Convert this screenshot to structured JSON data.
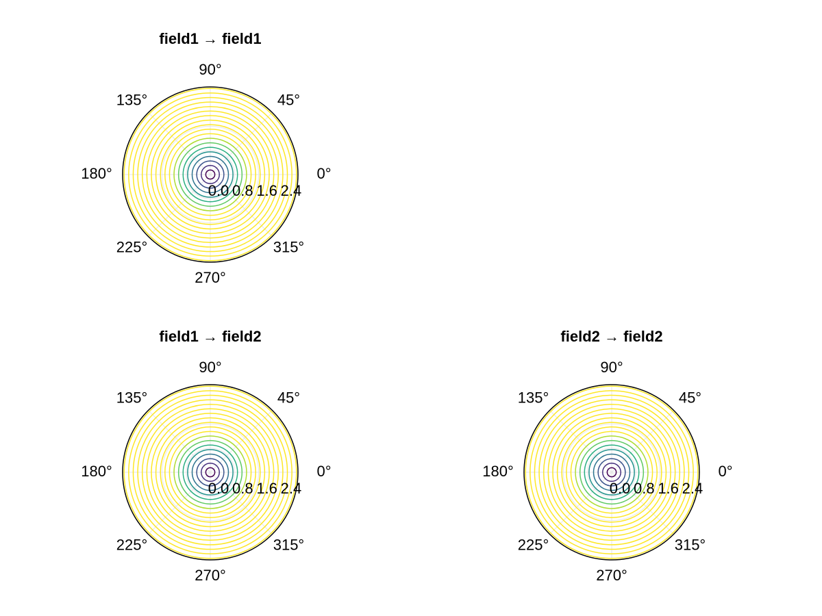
{
  "chart_data": [
    {
      "type": "polar-contour",
      "title": "field1 → field1",
      "grid": true,
      "rlim": [
        0,
        2.9
      ],
      "rticks": [
        {
          "value": 0,
          "label": "0.0"
        },
        {
          "value": 0.8,
          "label": "0.8"
        },
        {
          "value": 1.6,
          "label": "1.6"
        },
        {
          "value": 2.4,
          "label": "2.4"
        }
      ],
      "thetaticks": [
        {
          "value": 0,
          "label": "0°"
        },
        {
          "value": 45,
          "label": "45°"
        },
        {
          "value": 90,
          "label": "90°"
        },
        {
          "value": 135,
          "label": "135°"
        },
        {
          "value": 180,
          "label": "180°"
        },
        {
          "value": 225,
          "label": "225°"
        },
        {
          "value": 270,
          "label": "270°"
        },
        {
          "value": 315,
          "label": "315°"
        }
      ],
      "contour_radii": [
        0.15,
        0.3,
        0.45,
        0.6,
        0.75,
        0.9,
        1.05,
        1.2,
        1.35,
        1.5,
        1.65,
        1.8,
        1.95,
        2.1,
        2.25,
        2.4,
        2.55,
        2.7,
        2.85
      ],
      "contour_colors": [
        "#440154",
        "#46307e",
        "#3b528b",
        "#2c728e",
        "#21918c",
        "#28ae80",
        "#5ec962",
        "#addc30",
        "#fde725",
        "#fde725",
        "#fde725",
        "#fde725",
        "#fde725",
        "#fde725",
        "#fde725",
        "#fde725",
        "#fde725",
        "#fde725",
        "#fde725"
      ]
    },
    {
      "type": "polar-contour",
      "title": "field1 → field2",
      "grid": true,
      "rlim": [
        0,
        2.9
      ],
      "rticks": [
        {
          "value": 0,
          "label": "0.0"
        },
        {
          "value": 0.8,
          "label": "0.8"
        },
        {
          "value": 1.6,
          "label": "1.6"
        },
        {
          "value": 2.4,
          "label": "2.4"
        }
      ],
      "thetaticks": [
        {
          "value": 0,
          "label": "0°"
        },
        {
          "value": 45,
          "label": "45°"
        },
        {
          "value": 90,
          "label": "90°"
        },
        {
          "value": 135,
          "label": "135°"
        },
        {
          "value": 180,
          "label": "180°"
        },
        {
          "value": 225,
          "label": "225°"
        },
        {
          "value": 270,
          "label": "270°"
        },
        {
          "value": 315,
          "label": "315°"
        }
      ],
      "contour_radii": [
        0.15,
        0.3,
        0.45,
        0.6,
        0.75,
        0.9,
        1.05,
        1.2,
        1.35,
        1.5,
        1.65,
        1.8,
        1.95,
        2.1,
        2.25,
        2.4,
        2.55,
        2.7,
        2.85
      ],
      "contour_colors": [
        "#440154",
        "#46307e",
        "#3b528b",
        "#2c728e",
        "#21918c",
        "#28ae80",
        "#5ec962",
        "#addc30",
        "#fde725",
        "#fde725",
        "#fde725",
        "#fde725",
        "#fde725",
        "#fde725",
        "#fde725",
        "#fde725",
        "#fde725",
        "#fde725",
        "#fde725"
      ]
    },
    {
      "type": "polar-contour",
      "title": "field2 → field2",
      "grid": true,
      "rlim": [
        0,
        2.9
      ],
      "rticks": [
        {
          "value": 0,
          "label": "0.0"
        },
        {
          "value": 0.8,
          "label": "0.8"
        },
        {
          "value": 1.6,
          "label": "1.6"
        },
        {
          "value": 2.4,
          "label": "2.4"
        }
      ],
      "thetaticks": [
        {
          "value": 0,
          "label": "0°"
        },
        {
          "value": 45,
          "label": "45°"
        },
        {
          "value": 90,
          "label": "90°"
        },
        {
          "value": 135,
          "label": "135°"
        },
        {
          "value": 180,
          "label": "180°"
        },
        {
          "value": 225,
          "label": "225°"
        },
        {
          "value": 270,
          "label": "270°"
        },
        {
          "value": 315,
          "label": "315°"
        }
      ],
      "contour_radii": [
        0.15,
        0.3,
        0.45,
        0.6,
        0.75,
        0.9,
        1.05,
        1.2,
        1.35,
        1.5,
        1.65,
        1.8,
        1.95,
        2.1,
        2.25,
        2.4,
        2.55,
        2.7,
        2.85
      ],
      "contour_colors": [
        "#440154",
        "#46307e",
        "#3b528b",
        "#2c728e",
        "#21918c",
        "#28ae80",
        "#5ec962",
        "#addc30",
        "#fde725",
        "#fde725",
        "#fde725",
        "#fde725",
        "#fde725",
        "#fde725",
        "#fde725",
        "#fde725",
        "#fde725",
        "#fde725",
        "#fde725"
      ]
    }
  ]
}
